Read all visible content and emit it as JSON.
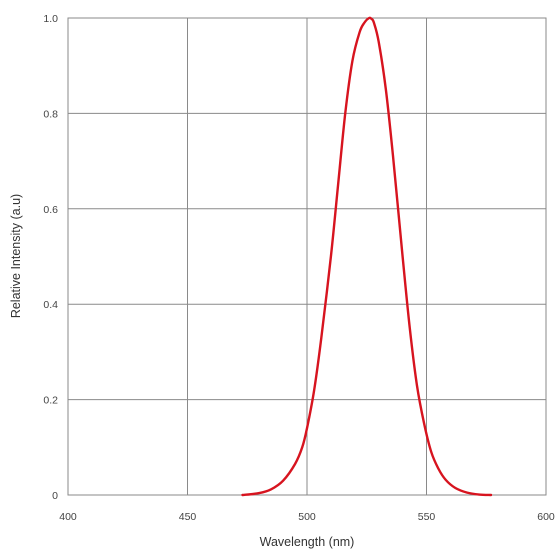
{
  "chart_data": {
    "type": "line",
    "xlabel": "Wavelength (nm)",
    "ylabel": "Relative Intensity (a.u)",
    "xlim": [
      400,
      600
    ],
    "ylim": [
      0,
      1.0
    ],
    "x_ticks": [
      "400",
      "450",
      "500",
      "550",
      "600"
    ],
    "y_ticks": [
      "0",
      "0.2",
      "0.4",
      "0.6",
      "0.8",
      "1.0"
    ],
    "grid": true,
    "series": [
      {
        "color": "#d7141f",
        "x": [
          473,
          480,
          485,
          490,
          495,
          498,
          500,
          503,
          506,
          510,
          513,
          516,
          519,
          522,
          524,
          526,
          527,
          528,
          530,
          533,
          536,
          540,
          543,
          546,
          549,
          552,
          555,
          558,
          562,
          567,
          572,
          577
        ],
        "y": [
          0.0,
          0.004,
          0.012,
          0.03,
          0.065,
          0.1,
          0.14,
          0.22,
          0.33,
          0.5,
          0.65,
          0.8,
          0.91,
          0.97,
          0.99,
          1.0,
          0.998,
          0.99,
          0.95,
          0.85,
          0.71,
          0.5,
          0.35,
          0.23,
          0.15,
          0.09,
          0.055,
          0.032,
          0.015,
          0.005,
          0.001,
          0.0
        ]
      }
    ]
  }
}
